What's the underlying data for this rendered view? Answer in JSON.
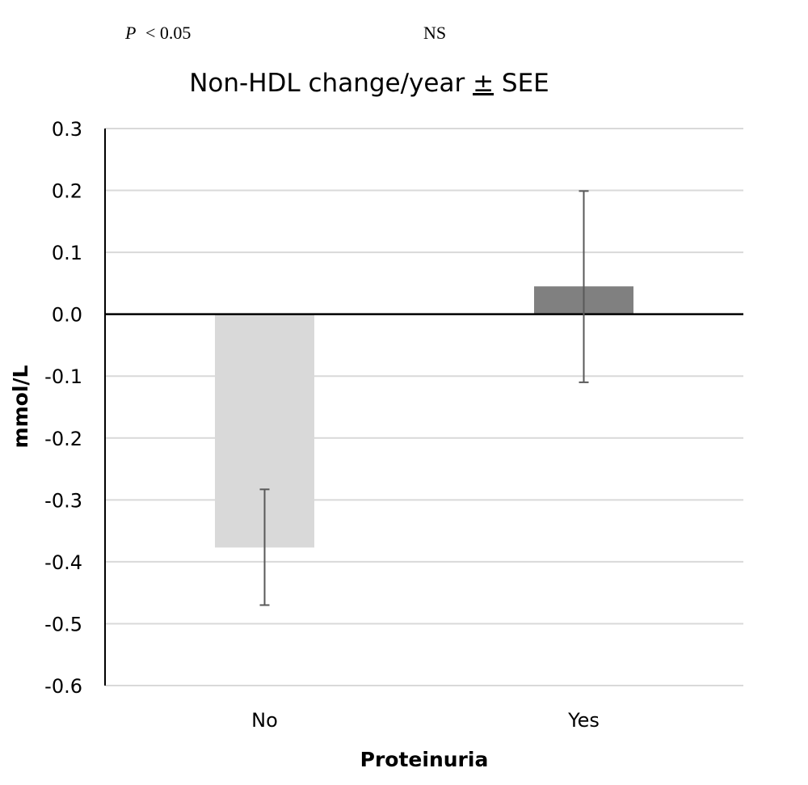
{
  "annotations": {
    "left_p_symbol": "P",
    "left_p_value": "< 0.05",
    "right_label": "NS"
  },
  "chart_data": {
    "type": "bar",
    "title_main": "Non-HDL change/year ",
    "title_pm": "±",
    "title_end": " SEE",
    "xlabel": "Proteinuria",
    "ylabel": "mmol/L",
    "categories": [
      "No",
      "Yes"
    ],
    "values": [
      -0.377,
      0.045
    ],
    "error_lower": [
      -0.47,
      -0.11
    ],
    "error_upper": [
      -0.283,
      0.199
    ],
    "bar_colors": [
      "#d9d9d9",
      "#808080"
    ],
    "error_bar_color": "#595959",
    "ylim": [
      -0.6,
      0.3
    ],
    "yticks": [
      0.3,
      0.2,
      0.1,
      0.0,
      -0.1,
      -0.2,
      -0.3,
      -0.4,
      -0.5,
      -0.6
    ],
    "ytick_labels": [
      "0.3",
      "0.2",
      "0.1",
      "0.0",
      "-0.1",
      "-0.2",
      "-0.3",
      "-0.4",
      "-0.5",
      "-0.6"
    ],
    "grid": true,
    "grid_color": "#d9d9d9",
    "zero_line_color": "#000000"
  }
}
